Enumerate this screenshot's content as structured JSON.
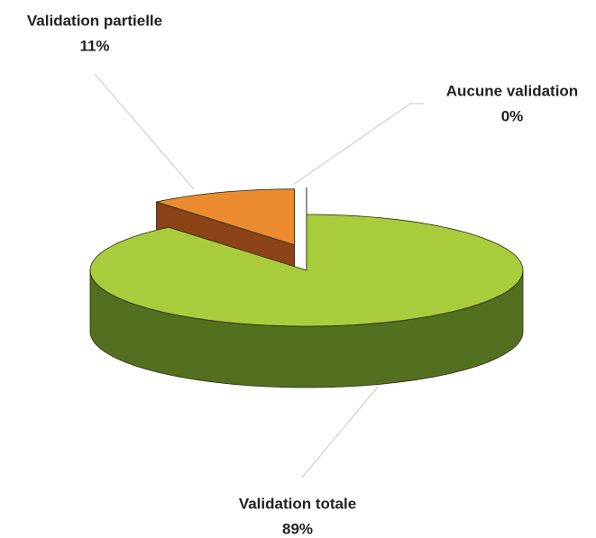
{
  "chart_data": {
    "type": "pie",
    "categories": [
      "Validation partielle",
      "Aucune validation",
      "Validation totale"
    ],
    "values": [
      11,
      0,
      89
    ],
    "value_labels": [
      "11%",
      "0%",
      "89%"
    ],
    "colors": [
      "#e98b2e",
      "#ffffff",
      "#a8cc3c"
    ],
    "side_colors": [
      "#8c4317",
      "#dddddd",
      "#52701f"
    ]
  }
}
